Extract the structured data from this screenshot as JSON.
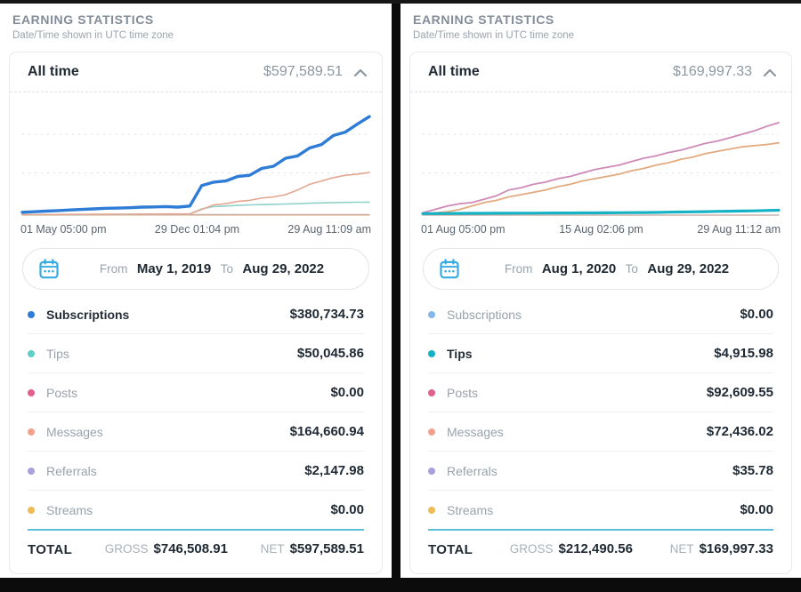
{
  "colors": {
    "accent_blue": "#2e7cd6",
    "accent_teal": "#15b2c6",
    "total_separator": "#5fc0d8",
    "calendar_icon": "#35abe2",
    "chevron_icon": "#8d97a1"
  },
  "panels": [
    {
      "header": {
        "title": "EARNING STATISTICS",
        "subtitle": "Date/Time shown in UTC time zone"
      },
      "card": {
        "period_label": "All time",
        "period_amount": "$597,589.51",
        "date_range": {
          "from_label": "From",
          "from": "May 1, 2019",
          "to_label": "To",
          "to": "Aug 29, 2022"
        },
        "rows": [
          {
            "label": "Subscriptions",
            "amount": "$380,734.73",
            "dot": "#2e7cd6",
            "active": true
          },
          {
            "label": "Tips",
            "amount": "$50,045.86",
            "dot": "#5ed0c8",
            "active": false
          },
          {
            "label": "Posts",
            "amount": "$0.00",
            "dot": "#e2608a",
            "active": false
          },
          {
            "label": "Messages",
            "amount": "$164,660.94",
            "dot": "#f2a28b",
            "active": false
          },
          {
            "label": "Referrals",
            "amount": "$2,147.98",
            "dot": "#a89fdb",
            "active": false
          },
          {
            "label": "Streams",
            "amount": "$0.00",
            "dot": "#eebb55",
            "active": false
          }
        ],
        "total": {
          "label": "TOTAL",
          "gross_label": "GROSS",
          "gross": "$746,508.91",
          "net_label": "NET",
          "net": "$597,589.51"
        }
      }
    },
    {
      "header": {
        "title": "EARNING STATISTICS",
        "subtitle": "Date/Time shown in UTC time zone"
      },
      "card": {
        "period_label": "All time",
        "period_amount": "$169,997.33",
        "date_range": {
          "from_label": "From",
          "from": "Aug 1, 2020",
          "to_label": "To",
          "to": "Aug 29, 2022"
        },
        "rows": [
          {
            "label": "Subscriptions",
            "amount": "$0.00",
            "dot": "#85b8e8",
            "active": false
          },
          {
            "label": "Tips",
            "amount": "$4,915.98",
            "dot": "#15b2c6",
            "active": true
          },
          {
            "label": "Posts",
            "amount": "$92,609.55",
            "dot": "#e2608a",
            "active": false
          },
          {
            "label": "Messages",
            "amount": "$72,436.02",
            "dot": "#f2a28b",
            "active": false
          },
          {
            "label": "Referrals",
            "amount": "$35.78",
            "dot": "#a89fdb",
            "active": false
          },
          {
            "label": "Streams",
            "amount": "$0.00",
            "dot": "#eebb55",
            "active": false
          }
        ],
        "total": {
          "label": "TOTAL",
          "gross_label": "GROSS",
          "gross": "$212,490.56",
          "net_label": "NET",
          "net": "$169,997.33"
        }
      }
    }
  ],
  "chart_data": [
    {
      "type": "line",
      "x_ticks": [
        "01 May 05:00 pm",
        "29 Dec 01:04 pm",
        "29 Aug 11:09 am"
      ],
      "ylabel": "",
      "xlabel": "",
      "ymax": 440000,
      "gridlines": [
        0.37,
        0.71
      ],
      "legend_position": "none",
      "series": [
        {
          "name": "Posts",
          "color": "#dba6ad",
          "width": 1.3,
          "values": [
            0,
            0
          ]
        },
        {
          "name": "Streams",
          "color": "#e8c98f",
          "width": 1,
          "values": [
            0,
            0
          ]
        },
        {
          "name": "Referrals",
          "color": "#c9a8a0",
          "width": 1.4,
          "values": [
            2148,
            2148
          ]
        },
        {
          "name": "Tips",
          "color": "#8fd2cb",
          "width": 1.6,
          "values": [
            1300,
            1300,
            1800,
            1800,
            2200,
            2200,
            2600,
            2600,
            3100,
            3100,
            3500,
            3500,
            4000,
            4000,
            4400,
            24200,
            33000,
            35200,
            37400,
            39600,
            40500,
            41800,
            43100,
            44000,
            46200,
            47100,
            48400,
            49300,
            49700,
            50046
          ]
        },
        {
          "name": "Messages",
          "color": "#e3a691",
          "width": 1.6,
          "values": [
            1800,
            1800,
            2200,
            2200,
            2600,
            2600,
            3100,
            3100,
            3500,
            3500,
            4000,
            4000,
            4400,
            4400,
            5300,
            22000,
            39600,
            44000,
            52800,
            57200,
            66000,
            70400,
            79200,
            96800,
            118800,
            132000,
            145200,
            154000,
            158400,
            164661
          ]
        },
        {
          "name": "Subscriptions",
          "color": "#2e7cd6",
          "width": 3.4,
          "values": [
            11000,
            13200,
            15400,
            17600,
            19800,
            22000,
            24200,
            26400,
            27300,
            28600,
            30800,
            31700,
            33000,
            30800,
            35200,
            114400,
            127600,
            132000,
            149600,
            154000,
            180400,
            189200,
            220000,
            228800,
            259600,
            272800,
            308000,
            321200,
            352000,
            380735
          ]
        }
      ]
    },
    {
      "type": "line",
      "x_ticks": [
        "01 Aug 05:00 pm",
        "15 Aug 02:06 pm",
        "29 Aug 11:12 am"
      ],
      "ylabel": "",
      "xlabel": "",
      "ymax": 114000,
      "gridlines": [
        0.37,
        0.71
      ],
      "legend_position": "none",
      "series": [
        {
          "name": "Subscriptions",
          "color": "#9ec7ec",
          "width": 1,
          "values": [
            0,
            0
          ]
        },
        {
          "name": "Streams",
          "color": "#e8c98f",
          "width": 1,
          "values": [
            0,
            0
          ]
        },
        {
          "name": "Referrals",
          "color": "#cbb4ac",
          "width": 1.4,
          "values": [
            36,
            36
          ]
        },
        {
          "name": "Messages",
          "color": "#e2aa7f",
          "width": 1.8,
          "values": [
            1140,
            2280,
            3420,
            5700,
            9120,
            12540,
            14820,
            18240,
            20520,
            22800,
            25080,
            28500,
            30780,
            34200,
            36480,
            38760,
            41040,
            44460,
            46740,
            50160,
            52440,
            55860,
            58140,
            61560,
            63840,
            66120,
            68400,
            69540,
            70680,
            72436
          ]
        },
        {
          "name": "Posts",
          "color": "#cf8ab8",
          "width": 1.8,
          "values": [
            2280,
            5700,
            9120,
            11400,
            12540,
            15960,
            19380,
            25080,
            27360,
            30780,
            33060,
            36480,
            38760,
            42180,
            45600,
            47880,
            50160,
            53580,
            57000,
            59280,
            62700,
            64980,
            68400,
            71820,
            74100,
            77520,
            80940,
            84360,
            88920,
            92610
          ]
        },
        {
          "name": "Tips",
          "color": "#15b2c6",
          "width": 3.2,
          "values": [
            1500,
            1550,
            1600,
            1700,
            1750,
            1800,
            1850,
            1900,
            1950,
            2000,
            2050,
            2100,
            2150,
            2200,
            2250,
            2300,
            2400,
            2500,
            2600,
            2700,
            2900,
            3100,
            3300,
            3500,
            3700,
            3900,
            4100,
            4300,
            4600,
            4916
          ]
        }
      ]
    }
  ]
}
